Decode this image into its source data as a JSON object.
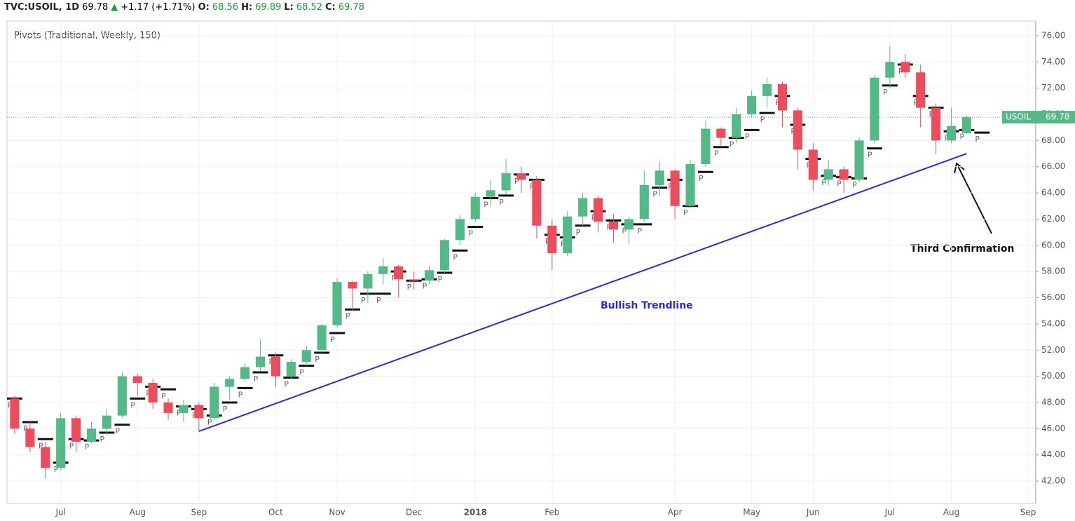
{
  "header": {
    "symbol": "TVC:USOIL, 1D",
    "last": "69.78",
    "change": "+1.17 (+1.71%)",
    "o_label": "O:",
    "o": "68.56",
    "h_label": "H:",
    "h": "69.89",
    "l_label": "L:",
    "l": "68.52",
    "c_label": "C:",
    "c": "69.78"
  },
  "chart_data": {
    "type": "candlestick",
    "indicator": "Pivots (Traditional, Weekly, 150)",
    "pivot_label": "P",
    "symbol_label": "USOIL",
    "last_price": 69.78,
    "last_price_label": "69.78",
    "up_color": "#53b987",
    "down_color": "#eb4d5c",
    "pivot_color": "#111111",
    "grid": true,
    "categories": [
      null,
      null,
      null,
      "Jul",
      null,
      null,
      null,
      null,
      "Aug",
      null,
      null,
      null,
      "Sep",
      null,
      null,
      null,
      null,
      "Oct",
      null,
      null,
      null,
      "Nov",
      null,
      null,
      null,
      null,
      "Dec",
      null,
      null,
      null,
      "2018",
      null,
      null,
      null,
      null,
      "Feb",
      null,
      null,
      null,
      null,
      null,
      null,
      null,
      "Apr",
      null,
      null,
      null,
      null,
      "May",
      null,
      null,
      null,
      "Jun",
      null,
      null,
      null,
      null,
      "Jul",
      null,
      null,
      null,
      "Aug",
      null,
      null,
      null,
      null,
      "Sep"
    ],
    "open": [
      48.3,
      46.0,
      44.6,
      43.0,
      46.8,
      45.0,
      46.0,
      47.0,
      50.0,
      49.5,
      48.0,
      47.2,
      47.8,
      46.8,
      49.2,
      49.8,
      50.7,
      51.5,
      50.0,
      51.1,
      52.0,
      53.9,
      57.2,
      56.7,
      57.8,
      58.4,
      57.4,
      57.3,
      58.1,
      60.4,
      62.0,
      63.7,
      64.2,
      65.5,
      65.0,
      61.5,
      59.4,
      62.2,
      63.6,
      61.8,
      61.2,
      62.0,
      64.6,
      65.7,
      63.0,
      66.2,
      68.9,
      68.2,
      70.0,
      71.4,
      72.3,
      70.3,
      67.3,
      65.0,
      65.8,
      65.0,
      68.0,
      72.8,
      74.0,
      73.2,
      70.5,
      68.0,
      68.56,
      null,
      null,
      null,
      null
    ],
    "high": [
      48.5,
      46.5,
      45.0,
      47.2,
      47.0,
      46.5,
      47.5,
      50.3,
      50.2,
      49.8,
      48.3,
      48.2,
      48.0,
      49.5,
      50.0,
      51.0,
      52.8,
      51.8,
      51.3,
      52.3,
      54.0,
      57.5,
      57.3,
      58.0,
      59.0,
      58.5,
      58.0,
      58.4,
      60.5,
      62.3,
      64.0,
      65.0,
      66.6,
      66.0,
      65.3,
      62.0,
      62.6,
      64.0,
      63.8,
      62.4,
      62.2,
      65.7,
      66.4,
      65.8,
      66.5,
      69.5,
      69.0,
      70.5,
      71.8,
      72.8,
      72.5,
      70.5,
      67.8,
      66.5,
      66.0,
      68.2,
      73.0,
      75.2,
      74.6,
      73.8,
      70.8,
      70.5,
      69.89,
      null,
      null,
      null,
      null
    ],
    "low": [
      45.6,
      44.2,
      42.2,
      42.8,
      44.2,
      44.9,
      45.5,
      46.8,
      48.5,
      47.5,
      46.7,
      46.5,
      45.8,
      46.6,
      48.2,
      49.6,
      50.4,
      49.2,
      49.8,
      50.8,
      51.8,
      53.7,
      55.0,
      55.6,
      57.0,
      56.0,
      56.6,
      57.0,
      57.9,
      60.0,
      61.8,
      63.0,
      63.9,
      64.0,
      60.5,
      58.1,
      59.2,
      61.5,
      61.0,
      60.2,
      60.1,
      61.8,
      63.8,
      62.0,
      62.8,
      66.0,
      67.5,
      67.8,
      69.8,
      70.5,
      69.0,
      65.8,
      64.2,
      64.6,
      64.0,
      64.8,
      67.8,
      72.0,
      72.8,
      69.0,
      67.0,
      67.8,
      68.52,
      null,
      null,
      null,
      null
    ],
    "close": [
      46.0,
      44.6,
      43.0,
      46.8,
      45.0,
      46.0,
      47.0,
      50.0,
      49.5,
      48.0,
      47.2,
      47.8,
      46.8,
      49.2,
      49.8,
      50.7,
      51.5,
      50.0,
      51.1,
      52.0,
      53.9,
      57.2,
      56.7,
      57.8,
      58.4,
      57.4,
      57.3,
      58.1,
      60.4,
      62.0,
      63.7,
      64.2,
      65.5,
      65.0,
      61.5,
      59.4,
      62.2,
      63.6,
      61.8,
      61.2,
      62.0,
      64.6,
      65.7,
      63.0,
      66.2,
      68.9,
      68.2,
      70.0,
      71.4,
      72.3,
      70.3,
      67.3,
      65.0,
      65.8,
      65.0,
      68.0,
      72.8,
      74.0,
      73.2,
      70.5,
      68.0,
      69.1,
      69.78,
      null,
      null,
      null,
      null
    ],
    "pivots": [
      48.3,
      46.5,
      45.2,
      43.4,
      45.2,
      45.1,
      45.7,
      46.3,
      48.3,
      49.2,
      49.0,
      47.7,
      47.5,
      47.0,
      48.0,
      49.1,
      50.3,
      51.6,
      49.9,
      50.8,
      51.8,
      53.3,
      55.1,
      56.3,
      56.3,
      58.0,
      57.3,
      57.4,
      57.9,
      59.6,
      61.4,
      63.6,
      63.8,
      65.4,
      65.0,
      60.8,
      60.6,
      61.5,
      62.6,
      61.9,
      61.6,
      61.6,
      64.4,
      65.0,
      63.0,
      65.6,
      67.5,
      68.2,
      68.8,
      70.1,
      71.4,
      69.2,
      66.6,
      65.3,
      65.2,
      65.1,
      67.4,
      72.2,
      73.8,
      71.4,
      70.5,
      68.7,
      68.8,
      68.6,
      null,
      null,
      null
    ],
    "ylim": [
      40.29,
      77.12
    ],
    "yticks": [
      {
        "value": 42,
        "label": "42.00"
      },
      {
        "value": 44,
        "label": "44.00"
      },
      {
        "value": 46,
        "label": "46.00"
      },
      {
        "value": 48,
        "label": "48.00"
      },
      {
        "value": 50,
        "label": "50.00"
      },
      {
        "value": 52,
        "label": "52.00"
      },
      {
        "value": 54,
        "label": "54.00"
      },
      {
        "value": 56,
        "label": "56.00"
      },
      {
        "value": 58,
        "label": "58.00"
      },
      {
        "value": 60,
        "label": "60.00"
      },
      {
        "value": 62,
        "label": "62.00"
      },
      {
        "value": 64,
        "label": "64.00"
      },
      {
        "value": 66,
        "label": "66.00"
      },
      {
        "value": 68,
        "label": "68.00"
      },
      {
        "value": 70,
        "label": "70.00"
      },
      {
        "value": 72,
        "label": "72.00"
      },
      {
        "value": 74,
        "label": "74.00"
      },
      {
        "value": 76,
        "label": "76.00"
      }
    ],
    "trendline": {
      "label": "Bullish Trendline",
      "color": "#2a2ae6",
      "start": {
        "index": 12,
        "value": 45.8
      },
      "end": {
        "index": 62,
        "value": 67.0
      }
    },
    "annotation": "Third Confirmation"
  }
}
